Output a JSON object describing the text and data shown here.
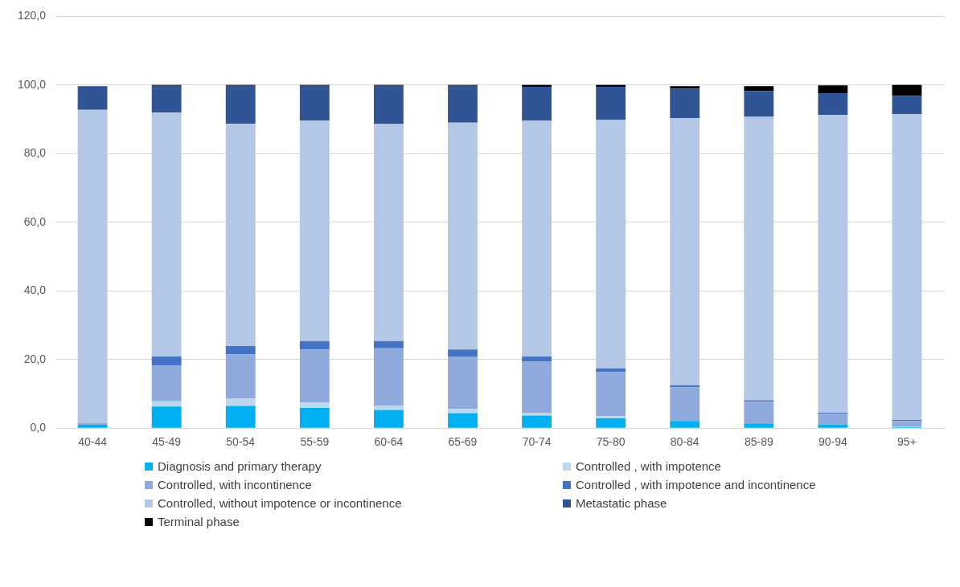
{
  "chart_data": {
    "type": "bar",
    "stacked": true,
    "grid": "y",
    "legend": "bottom",
    "categories": [
      "40-44",
      "45-49",
      "50-54",
      "55-59",
      "60-64",
      "65-69",
      "70-74",
      "75-80",
      "80-84",
      "85-89",
      "90-94",
      "95+"
    ],
    "ylim": [
      0,
      120
    ],
    "yticks": [
      {
        "value": 0,
        "label": "0,0"
      },
      {
        "value": 20,
        "label": "20,0"
      },
      {
        "value": 40,
        "label": "40,0"
      },
      {
        "value": 60,
        "label": "60,0"
      },
      {
        "value": 80,
        "label": "80,0"
      },
      {
        "value": 100,
        "label": "100,0"
      },
      {
        "value": 120,
        "label": "120,0"
      }
    ],
    "series": [
      {
        "name": "Diagnosis and primary therapy",
        "color": "#00b0f0",
        "values": [
          1.0,
          6.3,
          6.5,
          5.9,
          5.3,
          4.4,
          3.7,
          2.9,
          2.1,
          1.4,
          1.1,
          0.3
        ]
      },
      {
        "name": "Controlled , with impotence",
        "color": "#bdd7ee",
        "values": [
          null,
          1.5,
          2.2,
          1.5,
          1.2,
          1.2,
          0.7,
          0.6,
          null,
          null,
          null,
          0.1
        ]
      },
      {
        "name": "Controlled, with incontinence",
        "color": "#8faadc",
        "values": [
          0.5,
          10.4,
          12.8,
          15.5,
          16.8,
          15.3,
          15.0,
          12.8,
          9.8,
          6.3,
          3.1,
          1.7
        ]
      },
      {
        "name": "Controlled , with impotence and incontinence",
        "color": "#4472c4",
        "values": [
          0,
          2.7,
          2.4,
          2.5,
          2.1,
          2.0,
          1.5,
          1.1,
          0.6,
          0.4,
          0.3,
          0.3
        ]
      },
      {
        "name": "Controlled, without impotence or incontinence",
        "color": "#b4c7e7",
        "values": [
          91.3,
          71.1,
          64.8,
          64.2,
          63.2,
          66.1,
          68.8,
          72.5,
          77.8,
          82.6,
          86.8,
          89.1
        ]
      },
      {
        "name": "Metastatic phase",
        "color": "#2f5597",
        "values": [
          6.9,
          7.8,
          11.1,
          10.2,
          11.2,
          10.8,
          9.8,
          9.6,
          8.6,
          7.5,
          6.3,
          5.3
        ]
      },
      {
        "name": "Terminal phase",
        "color": "#000000",
        "values": [
          0,
          0.2,
          0.2,
          0.2,
          0.2,
          0.2,
          0.5,
          0.5,
          0.8,
          1.5,
          2.3,
          3.2
        ]
      }
    ]
  }
}
